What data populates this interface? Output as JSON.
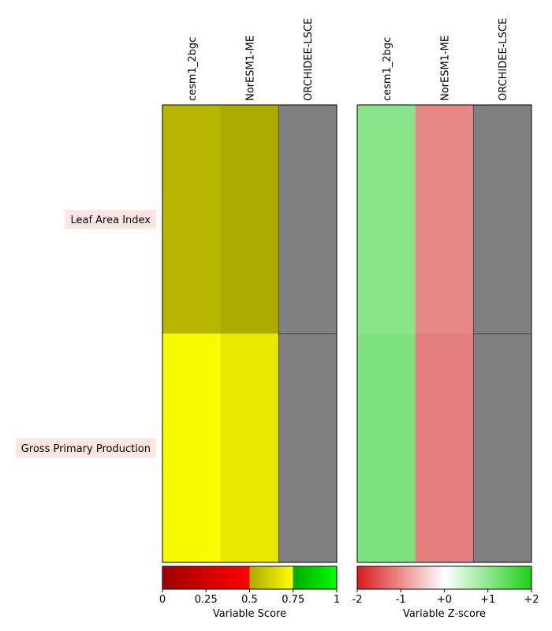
{
  "chart_data": [
    {
      "type": "heatmap",
      "title": "",
      "models": [
        "cesm1_2bgc",
        "NorESM1-ME",
        "ORCHIDEE-LSCE"
      ],
      "variables": [
        "Leaf Area Index",
        "Gross Primary Production"
      ],
      "cell_colors": [
        [
          "#b6b600",
          "#acac00",
          "#808080"
        ],
        [
          "#f9f900",
          "#e9e900",
          "#808080"
        ]
      ],
      "colorbar": {
        "label": "Variable Score",
        "ticks": [
          "0",
          "0.25",
          "0.5",
          "0.75",
          "1"
        ],
        "range": [
          0,
          1
        ],
        "stops": [
          "#a00000",
          "#ff0000",
          "#aaaa00",
          "#ffff00",
          "#00aa00",
          "#00ff00"
        ]
      }
    },
    {
      "type": "heatmap",
      "title": "",
      "models": [
        "cesm1_2bgc",
        "NorESM1-ME",
        "ORCHIDEE-LSCE"
      ],
      "variables": [
        "Leaf Area Index",
        "Gross Primary Production"
      ],
      "cell_colors": [
        [
          "#89e589",
          "#e68888",
          "#808080"
        ],
        [
          "#7ee37e",
          "#e67f7f",
          "#808080"
        ]
      ],
      "colorbar": {
        "label": "Variable Z-score",
        "ticks": [
          "-2",
          "-1",
          "+0",
          "+1",
          "+2"
        ],
        "range": [
          -2,
          2
        ],
        "stops": [
          "#d71a1a",
          "#ffffff",
          "#1ad01a"
        ]
      }
    }
  ],
  "colors": {
    "label_background": "#fde6e2",
    "missing": "#808080",
    "border": "#000000"
  }
}
